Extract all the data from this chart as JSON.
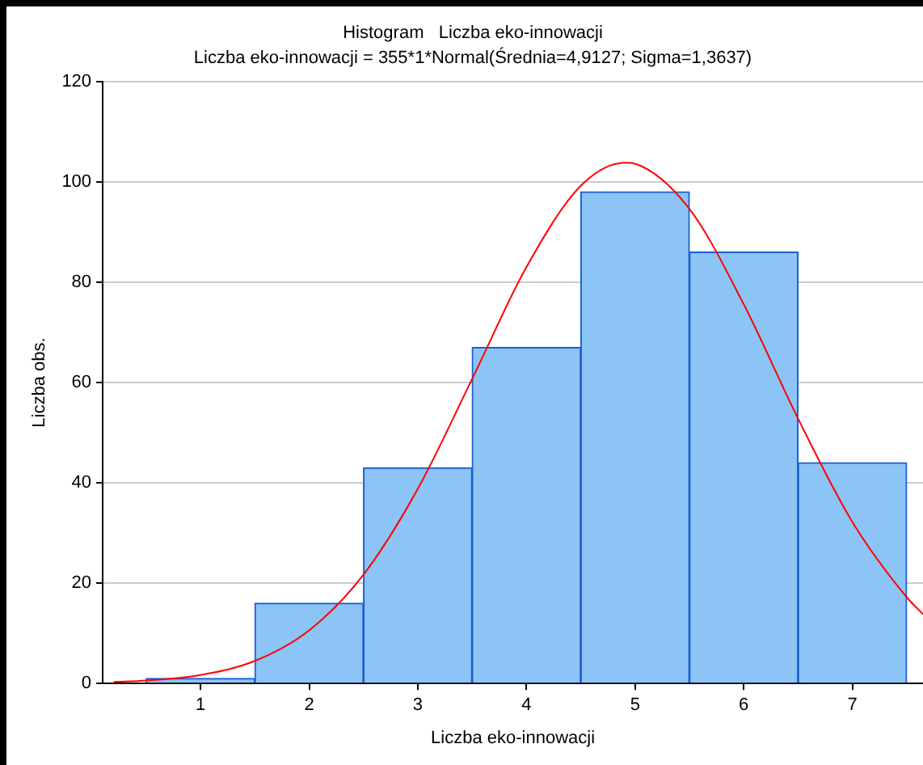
{
  "chart_data": {
    "type": "histogram",
    "title": "Histogram   Liczba eko-innowacji",
    "subtitle": "Liczba eko-innowacji = 355*1*Normal(Średnia=4,9127; Sigma=1,3637)",
    "xlabel": "Liczba eko-innowacji",
    "ylabel": "Liczba obs.",
    "bins": [
      0.5,
      1.5,
      2.5,
      3.5,
      4.5,
      5.5,
      6.5,
      7.5
    ],
    "values": [
      1,
      16,
      43,
      67,
      98,
      86,
      44
    ],
    "color": "#8cc4f5",
    "series": [
      {
        "type": "line",
        "color": "#ff0000",
        "x": [
          0.2,
          0.5,
          1.0,
          1.5,
          2.0,
          2.5,
          3.0,
          3.5,
          4.0,
          4.5,
          4.9127,
          5.0,
          5.5,
          6.0,
          6.5,
          7.0,
          7.5,
          7.65
        ],
        "values": [
          0.3,
          0.6,
          1.7,
          4.5,
          10.6,
          21.7,
          38.8,
          60.7,
          83,
          99.2,
          103.8,
          103.6,
          94.6,
          75.6,
          52.8,
          32.2,
          17.2,
          13.8
        ]
      }
    ],
    "xlim": [
      0.1,
      7.65
    ],
    "xticks": [
      1,
      2,
      3,
      4,
      5,
      6,
      7
    ],
    "ylim": [
      0,
      120
    ],
    "yticks": [
      0,
      20,
      40,
      60,
      80,
      100,
      120
    ],
    "grid": "y",
    "legend": false,
    "marker": "none"
  }
}
